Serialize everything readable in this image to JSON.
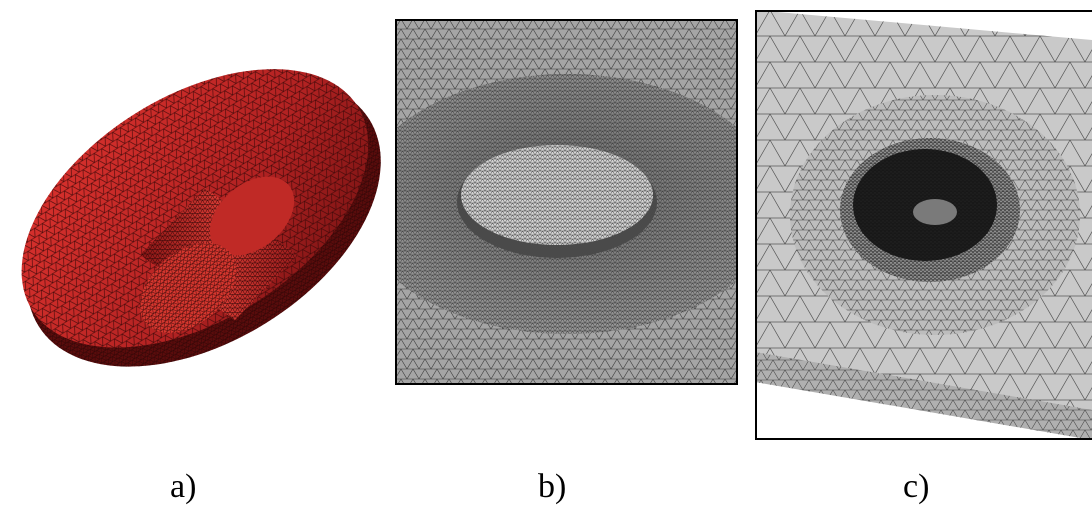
{
  "figure": {
    "panels": [
      {
        "id": "a",
        "caption": "a)",
        "mesh_color": "#d42a2a"
      },
      {
        "id": "b",
        "caption": "b)",
        "mesh_color": "#9a9a9a"
      },
      {
        "id": "c",
        "caption": "c)",
        "mesh_color": "#c8c8c8"
      }
    ]
  }
}
